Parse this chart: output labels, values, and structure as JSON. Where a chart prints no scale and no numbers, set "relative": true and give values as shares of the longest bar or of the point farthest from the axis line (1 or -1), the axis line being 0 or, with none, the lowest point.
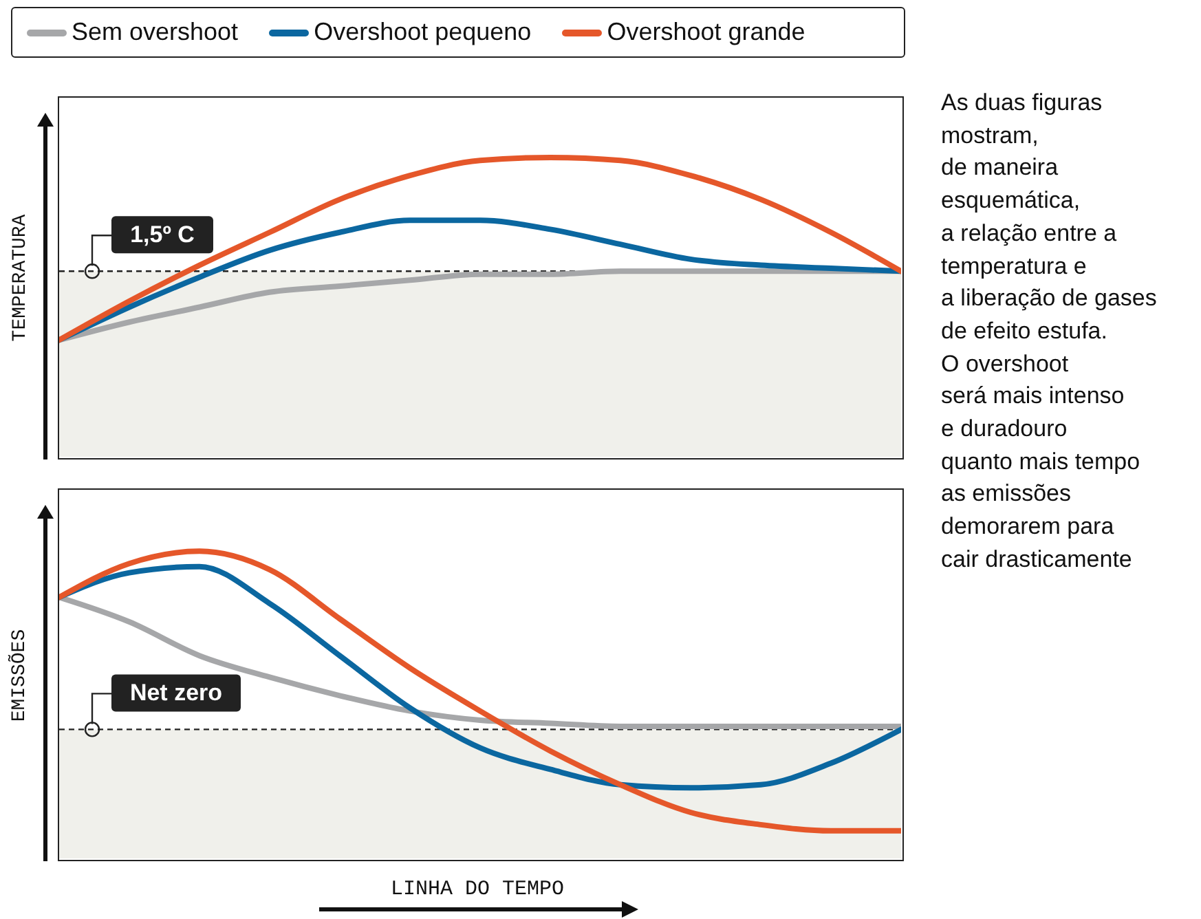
{
  "chart_data": [
    {
      "type": "line",
      "ylabel": "TEMPERATURA",
      "relative": true,
      "grid": false,
      "tick_labels": false,
      "legend": "top",
      "categories": [
        null,
        null,
        null,
        null,
        null,
        null,
        null,
        null,
        null,
        null,
        null,
        null,
        null
      ],
      "series": [
        {
          "name": "Sem overshoot",
          "color": "#a6a7a9",
          "values": [
            0.39,
            0.45,
            0.5,
            0.55,
            0.57,
            0.59,
            0.61,
            0.61,
            0.62,
            0.62,
            0.62,
            0.62,
            0.62
          ]
        },
        {
          "name": "Overshoot pequeno",
          "color": "#0b67a0",
          "values": [
            0.39,
            0.5,
            0.6,
            0.69,
            0.75,
            0.79,
            0.79,
            0.76,
            0.71,
            0.66,
            0.64,
            0.63,
            0.62
          ]
        },
        {
          "name": "Overshoot grande",
          "color": "#e5572a",
          "values": [
            0.39,
            0.52,
            0.64,
            0.75,
            0.86,
            0.94,
            0.99,
            1,
            0.99,
            0.94,
            0.86,
            0.75,
            0.62
          ]
        }
      ],
      "ref_lines": [
        {
          "axis": "y",
          "value": 0.62,
          "label": "1,5º C",
          "color": "#222222",
          "line_style": "dashed"
        }
      ],
      "bands": [
        {
          "axis": "y",
          "from": 0,
          "to": 0.62,
          "color": "#f0f0eb"
        }
      ],
      "annotations": [
        "As duas figuras\nmostram,\nde maneira\nesquemática,\na relação entre a\ntemperatura e\na liberação de gases\nde efeito estufa.\nO overshoot\nserá mais intenso\ne duradouro\nquanto mais tempo\nas emissões\ndemorarem para\ncair drasticamente"
      ]
    },
    {
      "type": "line",
      "ylabel": "EMISSÕES",
      "xlabel": "LINHA DO TEMPO",
      "relative": true,
      "grid": false,
      "tick_labels": false,
      "categories": [
        null,
        null,
        null,
        null,
        null,
        null,
        null,
        null,
        null,
        null,
        null,
        null,
        null
      ],
      "series": [
        {
          "color": "#a6a7a9",
          "values": [
            0.85,
            0.77,
            0.66,
            0.59,
            0.53,
            0.48,
            0.45,
            0.44,
            0.43,
            0.43,
            0.43,
            0.43,
            0.43
          ]
        },
        {
          "color": "#0b67a0",
          "values": [
            0.85,
            0.93,
            0.95,
            0.83,
            0.66,
            0.49,
            0.36,
            0.29,
            0.24,
            0.23,
            0.24,
            0.31,
            0.42
          ]
        },
        {
          "color": "#e5572a",
          "values": [
            0.85,
            0.96,
            1,
            0.94,
            0.78,
            0.62,
            0.48,
            0.35,
            0.24,
            0.15,
            0.11,
            0.09,
            0.09
          ]
        }
      ],
      "ref_lines": [
        {
          "axis": "y",
          "value": 0.42,
          "label": "Net zero",
          "color": "#222222",
          "line_style": "dashed"
        }
      ],
      "bands": [
        {
          "axis": "y",
          "from": 0,
          "to": 0.42,
          "color": "#f0f0eb"
        }
      ]
    }
  ]
}
